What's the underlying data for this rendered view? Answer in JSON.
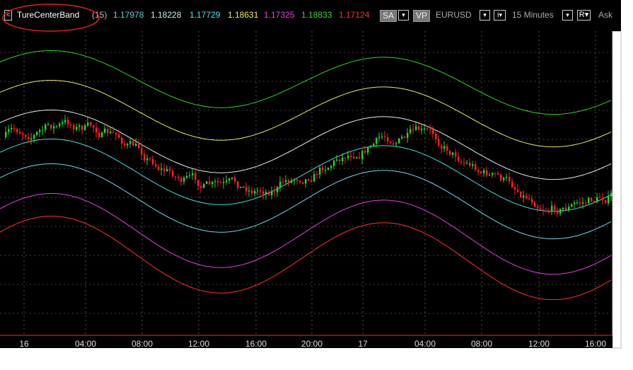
{
  "toolbar": {
    "indicator": "TureCenterBand",
    "period": "(15)",
    "band_values": [
      {
        "text": "1.17978",
        "color": "#5fd3d3"
      },
      {
        "text": "1.18228",
        "color": "#c8f0f0"
      },
      {
        "text": "1.17729",
        "color": "#4fe0e0"
      },
      {
        "text": "1.18631",
        "color": "#f0f060"
      },
      {
        "text": "1.17325",
        "color": "#e040e0"
      },
      {
        "text": "1.18833",
        "color": "#40d040"
      },
      {
        "text": "1.17124",
        "color": "#ff3030"
      }
    ],
    "buttons": [
      "SA",
      "VP"
    ],
    "symbol": "EURUSD",
    "timeframe": "15 Minutes",
    "price_button": "R",
    "price_type": "Ask"
  },
  "x_axis": {
    "labels": [
      "16",
      "04:00",
      "08:00",
      "12:00",
      "16:00",
      "20:00",
      "17",
      "04:00",
      "08:00",
      "12:00",
      "16:00"
    ]
  }
}
